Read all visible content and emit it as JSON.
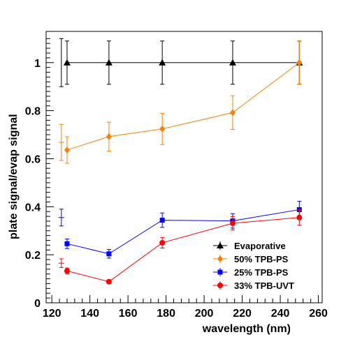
{
  "chart_data": {
    "type": "line",
    "xlabel": "wavelength (nm)",
    "ylabel": "plate signal/evap signal",
    "xlim": [
      117,
      262
    ],
    "ylim": [
      0,
      1.13
    ],
    "x_ticks": [
      120,
      140,
      160,
      180,
      200,
      220,
      240,
      260
    ],
    "y_ticks": [
      0,
      0.2,
      0.4,
      0.6,
      0.8,
      1
    ],
    "x_tick_labels": [
      "120",
      "140",
      "160",
      "180",
      "200",
      "220",
      "240",
      "260"
    ],
    "y_tick_labels": [
      "0",
      "0.2",
      "0.4",
      "0.6",
      "0.8",
      "1"
    ],
    "grid": false,
    "legend_position": "bottom-right",
    "series": [
      {
        "name": "Evaporative",
        "color": "#000000",
        "marker": "triangle",
        "x": [
          128,
          150,
          178,
          215,
          250
        ],
        "y": [
          1.0,
          1.0,
          1.0,
          1.0,
          1.0
        ],
        "yerr": [
          0.09,
          0.09,
          0.09,
          0.09,
          0.09
        ]
      },
      {
        "name": "50% TPB-PS",
        "color": "#ff8000",
        "marker": "diamond",
        "x": [
          128,
          150,
          178,
          215,
          250
        ],
        "y": [
          0.636,
          0.692,
          0.724,
          0.792,
          1.0
        ],
        "yerr": [
          0.055,
          0.06,
          0.065,
          0.07,
          0.09
        ]
      },
      {
        "name": "25% TPB-PS",
        "color": "#0000ff",
        "marker": "square",
        "x": [
          128,
          150,
          178,
          215,
          250
        ],
        "y": [
          0.246,
          0.204,
          0.344,
          0.341,
          0.388
        ],
        "yerr": [
          0.02,
          0.018,
          0.03,
          0.03,
          0.035
        ]
      },
      {
        "name": "33% TPB-UVT",
        "color": "#ff0000",
        "marker": "circle",
        "x": [
          128,
          150,
          178,
          215,
          250
        ],
        "y": [
          0.133,
          0.088,
          0.25,
          0.331,
          0.355
        ],
        "yerr": [
          0.012,
          0.008,
          0.022,
          0.028,
          0.032
        ]
      }
    ],
    "extra_points": [
      {
        "series": "Evaporative",
        "color": "#000000",
        "x": 125,
        "y": 1.0,
        "yerr": 0.1,
        "xerr": 0
      },
      {
        "series": "50% TPB-PS",
        "color": "#ff8000",
        "x": 125,
        "y": 0.668,
        "yerr": 0.075,
        "xerr": 1.5
      },
      {
        "series": "25% TPB-PS",
        "color": "#0000ff",
        "x": 125,
        "y": 0.355,
        "yerr": 0.035,
        "xerr": 1.5
      },
      {
        "series": "33% TPB-UVT",
        "color": "#ff0000",
        "x": 125,
        "y": 0.165,
        "yerr": 0.018,
        "xerr": 1.5
      }
    ]
  }
}
